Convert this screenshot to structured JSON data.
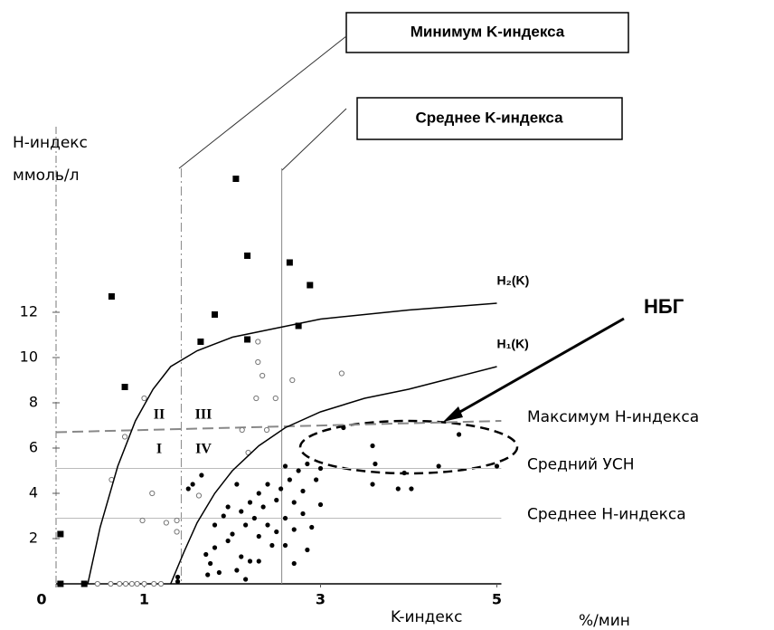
{
  "chart_data": {
    "type": "scatter",
    "y_label_lines": [
      "H-индекс",
      "ммоль/л"
    ],
    "x_label": "K-индекс",
    "x_unit": "%/мин",
    "annotation": "НБГ",
    "regions": [
      "II",
      "III",
      "I",
      "IV"
    ],
    "xlim": [
      0,
      5.2
    ],
    "ylim": [
      0,
      20
    ],
    "xticks": [
      0,
      1,
      3,
      5
    ],
    "yticks": [
      2,
      4,
      6,
      8,
      10,
      12
    ],
    "vlines": [
      {
        "label": "Минимум K-индекса",
        "x": 1.42,
        "style": "dashdot"
      },
      {
        "label": "Среднее K-индекса",
        "x": 2.56,
        "style": "solid"
      }
    ],
    "hlines": [
      {
        "label": "Максимум H-индекса",
        "values": [
          6.7,
          7.2
        ],
        "style": "dashed"
      },
      {
        "label": "Средний УСН",
        "values": [
          5.1,
          5.1
        ],
        "style": "solid"
      },
      {
        "label": "Среднее H-индекса",
        "values": [
          2.9,
          2.9
        ],
        "style": "solid"
      }
    ],
    "series": [
      {
        "marker": "square",
        "color": "#000000",
        "x": [
          0.05,
          0.05,
          0.32,
          0.63,
          0.78,
          1.64,
          1.8,
          2.04,
          2.17,
          2.17,
          2.65,
          2.88,
          2.75
        ],
        "values": [
          2.2,
          0,
          0,
          12.7,
          8.7,
          10.7,
          11.9,
          17.9,
          14.5,
          10.8,
          14.2,
          13.2,
          11.4
        ]
      },
      {
        "marker": "open",
        "color": "#777777",
        "x": [
          0.47,
          0.62,
          0.72,
          0.79,
          0.86,
          0.92,
          1.0,
          1.11,
          1.19,
          1.0,
          0.78,
          0.63,
          1.09,
          0.98,
          1.25,
          1.37,
          1.37,
          1.62,
          2.11,
          2.39,
          2.18,
          2.29,
          2.29,
          2.27,
          2.34,
          2.49,
          2.68,
          3.24
        ],
        "values": [
          0,
          0,
          0,
          0,
          0,
          0,
          0,
          0,
          0,
          8.2,
          6.5,
          4.6,
          4.0,
          2.8,
          2.7,
          2.8,
          2.3,
          3.9,
          6.8,
          6.8,
          5.8,
          10.7,
          9.8,
          8.2,
          9.2,
          8.2,
          9.0,
          9.3
        ]
      },
      {
        "marker": "dot",
        "color": "#000000",
        "x": [
          1.38,
          1.38,
          1.7,
          1.75,
          1.72,
          1.85,
          1.95,
          2.05,
          2.15,
          2.1,
          2.2,
          1.8,
          1.9,
          1.95,
          2.0,
          2.05,
          2.1,
          2.15,
          2.2,
          2.25,
          2.3,
          2.3,
          2.35,
          2.4,
          2.4,
          2.45,
          2.5,
          2.5,
          2.55,
          2.6,
          2.6,
          2.65,
          2.7,
          2.7,
          2.75,
          2.8,
          2.8,
          2.85,
          2.9,
          2.95,
          3.0,
          3.0,
          2.85,
          2.3,
          1.8,
          1.5,
          1.55,
          1.65,
          2.6,
          2.7,
          3.59,
          3.59,
          3.88,
          4.03,
          4.34,
          5.0,
          4.57,
          3.26,
          3.62,
          3.95
        ],
        "values": [
          0.3,
          0.1,
          1.3,
          0.9,
          0.4,
          0.5,
          1.9,
          0.6,
          0.2,
          1.2,
          1.0,
          2.6,
          3.0,
          3.4,
          2.2,
          4.4,
          3.2,
          2.6,
          3.6,
          2.9,
          4.0,
          2.1,
          3.4,
          4.4,
          2.6,
          1.7,
          3.7,
          2.3,
          4.2,
          2.9,
          1.7,
          4.6,
          3.6,
          2.4,
          5.0,
          3.1,
          4.1,
          5.3,
          2.5,
          4.6,
          3.5,
          5.1,
          1.5,
          1.0,
          1.6,
          4.2,
          4.4,
          4.8,
          5.2,
          0.9,
          6.1,
          4.4,
          4.2,
          4.2,
          5.2,
          5.2,
          6.6,
          6.9,
          5.3,
          4.9
        ]
      },
      {
        "marker": "line",
        "name": "H₂(K)",
        "color": "#000000",
        "x": [
          0.36,
          0.5,
          0.7,
          0.9,
          1.1,
          1.3,
          1.6,
          2.0,
          2.5,
          3.0,
          4.0,
          5.0
        ],
        "values": [
          0,
          2.5,
          5.2,
          7.2,
          8.6,
          9.6,
          10.3,
          10.9,
          11.3,
          11.7,
          12.1,
          12.4
        ]
      },
      {
        "marker": "line",
        "name": "H₁(K)",
        "color": "#000000",
        "x": [
          1.3,
          1.45,
          1.6,
          1.8,
          2.0,
          2.3,
          2.6,
          3.0,
          3.5,
          4.0,
          4.5,
          5.0
        ],
        "values": [
          0,
          1.4,
          2.7,
          4.0,
          5.0,
          6.1,
          6.9,
          7.6,
          8.2,
          8.6,
          9.1,
          9.6
        ]
      }
    ]
  }
}
